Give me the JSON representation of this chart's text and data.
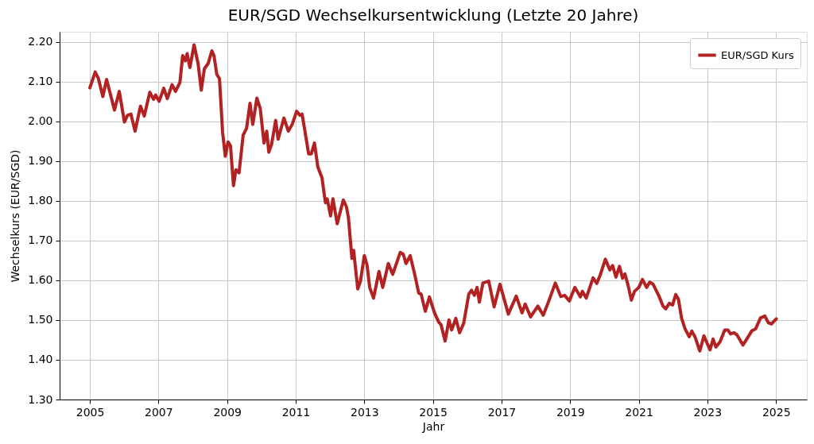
{
  "chart_data": {
    "type": "line",
    "title": "EUR/SGD Wechselkursentwicklung (Letzte 20 Jahre)",
    "xlabel": "Jahr",
    "ylabel": "Wechselkurs (EUR/SGD)",
    "x": [
      "2005-01-01",
      "2005-02-27",
      "2005-04-01",
      "2005-05-19",
      "2005-06-28",
      "2005-09-20",
      "2005-11-10",
      "2006-01-04",
      "2006-02-06",
      "2006-03-14",
      "2006-04-27",
      "2006-06-24",
      "2006-08-03",
      "2006-10-01",
      "2006-11-10",
      "2006-12-02",
      "2007-01-08",
      "2007-02-27",
      "2007-04-05",
      "2007-05-26",
      "2007-07-02",
      "2007-08-18",
      "2007-09-16",
      "2007-10-15",
      "2007-11-03",
      "2007-12-02",
      "2008-01-15",
      "2008-02-27",
      "2008-04-01",
      "2008-05-04",
      "2008-06-13",
      "2008-07-23",
      "2008-08-14",
      "2008-09-13",
      "2008-10-12",
      "2008-11-14",
      "2008-12-13",
      "2009-01-11",
      "2009-02-06",
      "2009-03-10",
      "2009-04-05",
      "2009-05-08",
      "2009-06-21",
      "2009-07-27",
      "2009-09-02",
      "2009-10-01",
      "2009-11-14",
      "2009-12-20",
      "2010-01-29",
      "2010-02-27",
      "2010-03-21",
      "2010-04-20",
      "2010-06-02",
      "2010-06-28",
      "2010-08-29",
      "2010-10-15",
      "2010-11-25",
      "2011-01-11",
      "2011-02-16",
      "2011-03-10",
      "2011-04-05",
      "2011-05-19",
      "2011-06-17",
      "2011-07-20",
      "2011-08-25",
      "2011-10-08",
      "2011-11-14",
      "2011-12-02",
      "2012-01-08",
      "2012-02-02",
      "2012-03-18",
      "2012-05-22",
      "2012-06-24",
      "2012-07-16",
      "2012-08-22",
      "2012-09-09",
      "2012-10-23",
      "2012-11-21",
      "2013-01-01",
      "2013-01-30",
      "2013-02-27",
      "2013-04-09",
      "2013-06-06",
      "2013-07-16",
      "2013-09-13",
      "2013-10-30",
      "2014-01-18",
      "2014-02-20",
      "2014-03-21",
      "2014-05-04",
      "2014-06-21",
      "2014-08-03",
      "2014-08-29",
      "2014-10-12",
      "2014-11-25",
      "2015-01-18",
      "2015-03-03",
      "2015-03-29",
      "2015-05-11",
      "2015-06-21",
      "2015-07-20",
      "2015-09-02",
      "2015-10-12",
      "2015-11-25",
      "2016-01-18",
      "2016-02-16",
      "2016-03-17",
      "2016-04-15",
      "2016-05-10",
      "2016-06-16",
      "2016-08-17",
      "2016-10-14",
      "2016-12-15",
      "2017-03-14",
      "2017-06-06",
      "2017-08-07",
      "2017-09-09",
      "2017-11-06",
      "2018-01-22",
      "2018-03-21",
      "2018-05-19",
      "2018-07-27",
      "2018-09-23",
      "2018-11-03",
      "2018-12-24",
      "2019-02-20",
      "2019-04-20",
      "2019-05-11",
      "2019-06-21",
      "2019-09-02",
      "2019-10-12",
      "2019-11-17",
      "2020-01-11",
      "2020-02-27",
      "2020-03-28",
      "2020-05-03",
      "2020-06-09",
      "2020-07-12",
      "2020-08-06",
      "2020-09-08",
      "2020-10-14",
      "2020-11-16",
      "2021-01-01",
      "2021-02-09",
      "2021-03-25",
      "2021-04-27",
      "2021-06-02",
      "2021-07-31",
      "2021-09-16",
      "2021-10-15",
      "2021-11-21",
      "2021-12-27",
      "2022-01-29",
      "2022-02-27",
      "2022-04-01",
      "2022-05-08",
      "2022-06-21",
      "2022-07-20",
      "2022-08-22",
      "2022-10-12",
      "2022-11-25",
      "2023-01-29",
      "2023-03-03",
      "2023-04-01",
      "2023-05-15",
      "2023-07-05",
      "2023-08-07",
      "2023-09-05",
      "2023-10-12",
      "2023-11-14",
      "2024-01-15",
      "2024-02-27",
      "2024-04-19",
      "2024-05-29",
      "2024-07-19",
      "2024-09-04",
      "2024-10-11",
      "2024-11-13",
      "2025-01-04"
    ],
    "series": [
      {
        "name": "EUR/SGD Kurs",
        "color": "#b22222",
        "values": [
          2.084,
          2.124,
          2.108,
          2.062,
          2.105,
          2.028,
          2.075,
          1.998,
          2.015,
          2.018,
          1.975,
          2.038,
          2.013,
          2.073,
          2.055,
          2.066,
          2.05,
          2.083,
          2.057,
          2.092,
          2.075,
          2.098,
          2.165,
          2.152,
          2.17,
          2.135,
          2.192,
          2.145,
          2.078,
          2.132,
          2.145,
          2.177,
          2.165,
          2.118,
          2.107,
          1.972,
          1.912,
          1.948,
          1.938,
          1.838,
          1.878,
          1.87,
          1.965,
          1.982,
          2.045,
          1.992,
          2.058,
          2.032,
          1.945,
          1.975,
          1.922,
          1.942,
          2.002,
          1.955,
          2.008,
          1.975,
          1.992,
          2.025,
          2.015,
          2.018,
          1.982,
          1.918,
          1.918,
          1.945,
          1.885,
          1.858,
          1.795,
          1.805,
          1.762,
          1.805,
          1.742,
          1.802,
          1.785,
          1.757,
          1.655,
          1.675,
          1.578,
          1.598,
          1.662,
          1.638,
          1.582,
          1.555,
          1.622,
          1.582,
          1.642,
          1.615,
          1.67,
          1.665,
          1.642,
          1.662,
          1.615,
          1.568,
          1.565,
          1.522,
          1.558,
          1.518,
          1.495,
          1.488,
          1.447,
          1.5,
          1.475,
          1.504,
          1.468,
          1.492,
          1.565,
          1.575,
          1.562,
          1.582,
          1.545,
          1.593,
          1.598,
          1.533,
          1.59,
          1.515,
          1.56,
          1.518,
          1.54,
          1.508,
          1.535,
          1.512,
          1.548,
          1.593,
          1.559,
          1.562,
          1.548,
          1.582,
          1.558,
          1.572,
          1.555,
          1.606,
          1.592,
          1.613,
          1.653,
          1.626,
          1.637,
          1.608,
          1.635,
          1.605,
          1.616,
          1.588,
          1.55,
          1.572,
          1.582,
          1.602,
          1.582,
          1.595,
          1.59,
          1.562,
          1.535,
          1.528,
          1.542,
          1.538,
          1.564,
          1.552,
          1.505,
          1.478,
          1.458,
          1.472,
          1.458,
          1.422,
          1.46,
          1.425,
          1.452,
          1.432,
          1.445,
          1.475,
          1.475,
          1.465,
          1.468,
          1.462,
          1.437,
          1.453,
          1.473,
          1.478,
          1.505,
          1.51,
          1.493,
          1.49,
          1.503
        ]
      }
    ],
    "xlim": [
      "2004-02-14",
      "2025-11-25"
    ],
    "xticks": [
      "2005",
      "2007",
      "2009",
      "2011",
      "2013",
      "2015",
      "2017",
      "2019",
      "2021",
      "2023",
      "2025"
    ],
    "ylim": [
      1.3,
      2.225
    ],
    "yticks": [
      {
        "value": 1.3,
        "label": "1.30"
      },
      {
        "value": 1.4,
        "label": "1.40"
      },
      {
        "value": 1.5,
        "label": "1.50"
      },
      {
        "value": 1.6,
        "label": "1.60"
      },
      {
        "value": 1.7,
        "label": "1.70"
      },
      {
        "value": 1.8,
        "label": "1.80"
      },
      {
        "value": 1.9,
        "label": "1.90"
      },
      {
        "value": 2.0,
        "label": "2.00"
      },
      {
        "value": 2.1,
        "label": "2.10"
      },
      {
        "value": 2.2,
        "label": "2.20"
      }
    ],
    "grid": true,
    "legend": "top right",
    "marker": "none",
    "line_style": "solid"
  }
}
